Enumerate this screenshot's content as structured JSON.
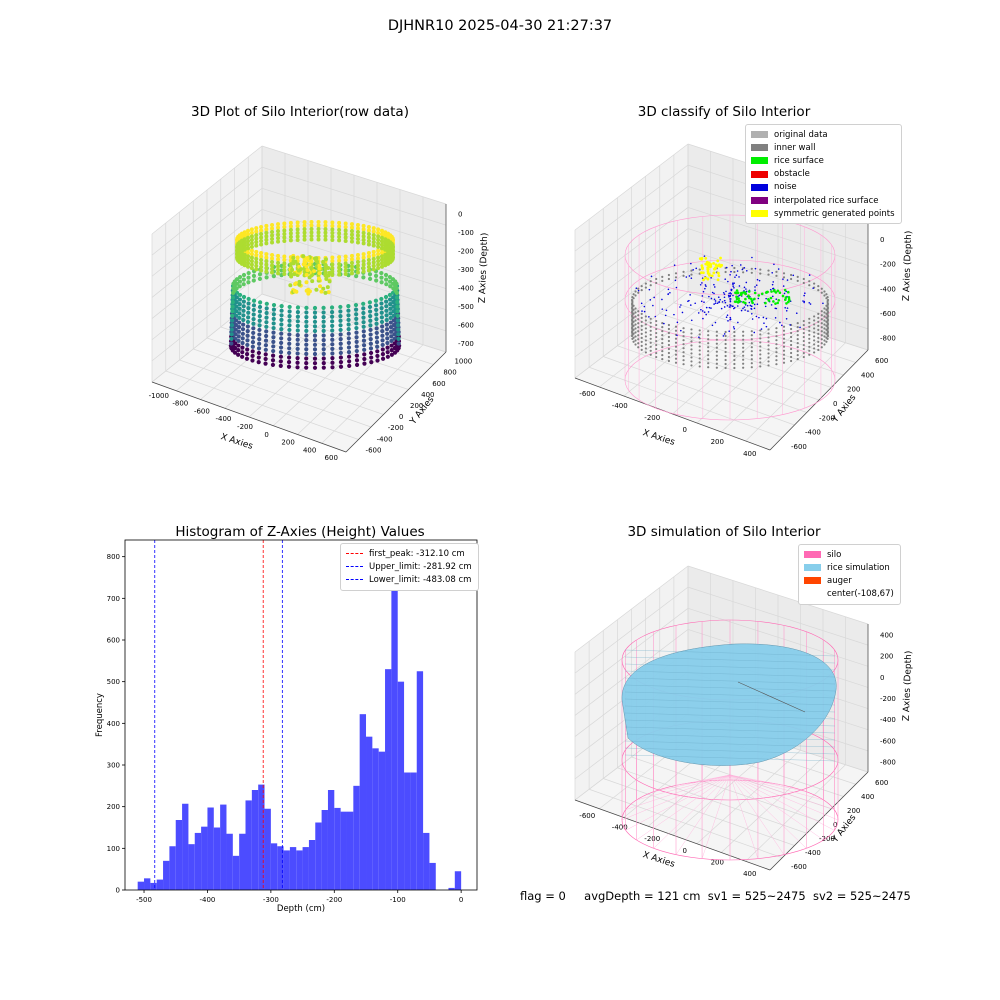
{
  "suptitle": "DJHNR10 2025-04-30 21:27:37",
  "status": {
    "flag": "flag = 0",
    "avg_depth": "avgDepth = 121 cm",
    "sv1": "sv1 = 525~2475",
    "sv2": "sv2 = 525~2475"
  },
  "panels": {
    "raw": {
      "title": "3D Plot of Silo Interior(row data)",
      "xlabel": "X Axies",
      "ylabel": "Y Axies",
      "zlabel": "Z Axies (Depth)",
      "xticks": [
        "-1000",
        "-800",
        "-600",
        "-400",
        "-200",
        "0",
        "200",
        "400",
        "600"
      ],
      "yticks": [
        "-600",
        "-400",
        "-200",
        "0",
        "200",
        "400",
        "600",
        "800",
        "1000"
      ],
      "zticks": [
        "0",
        "-100",
        "-200",
        "-300",
        "-400",
        "-500",
        "-600",
        "-700"
      ]
    },
    "classify": {
      "title": "3D classify of Silo Interior",
      "xlabel": "X Axies",
      "ylabel": "Y Axies",
      "zlabel": "Z Axies (Depth)",
      "xticks": [
        "-600",
        "-400",
        "-200",
        "0",
        "200",
        "400"
      ],
      "yticks": [
        "-600",
        "-400",
        "-200",
        "0",
        "200",
        "400",
        "600"
      ],
      "zticks": [
        "200",
        "0",
        "-200",
        "-400",
        "-600",
        "-800"
      ],
      "legend": [
        {
          "label": "original data",
          "color": "#b0b0b0"
        },
        {
          "label": "inner wall",
          "color": "#808080"
        },
        {
          "label": "rice surface",
          "color": "#00ee00"
        },
        {
          "label": "obstacle",
          "color": "#ee0000"
        },
        {
          "label": "noise",
          "color": "#0000dd"
        },
        {
          "label": "interpolated rice surface",
          "color": "#800080"
        },
        {
          "label": "symmetric generated points",
          "color": "#ffff00"
        }
      ]
    },
    "simulation": {
      "title": "3D simulation of Silo Interior",
      "xlabel": "X Axies",
      "ylabel": "Y Axies",
      "zlabel": "Z Axies (Depth)",
      "xticks": [
        "-600",
        "-400",
        "-200",
        "0",
        "200",
        "400"
      ],
      "yticks": [
        "-600",
        "-400",
        "-200",
        "0",
        "200",
        "400",
        "600"
      ],
      "zticks": [
        "400",
        "200",
        "0",
        "-200",
        "-400",
        "-600",
        "-800"
      ],
      "legend": [
        {
          "label": "silo",
          "color": "#ff69b4"
        },
        {
          "label": "rice simulation",
          "color": "#87ceeb"
        },
        {
          "label": "auger",
          "color": "#ff4500"
        },
        {
          "label": "center(-108,67)",
          "color": ""
        }
      ]
    }
  },
  "chart_data": {
    "type": "bar",
    "title": "Histogram of Z-Axies (Height) Values",
    "xlabel": "Depth (cm)",
    "ylabel": "Frequency",
    "xlim": [
      -530,
      25
    ],
    "ylim": [
      0,
      840
    ],
    "xticks": [
      -500,
      -400,
      -300,
      -200,
      -100,
      0
    ],
    "yticks": [
      0,
      100,
      200,
      300,
      400,
      500,
      600,
      700,
      800
    ],
    "bin_start": -510,
    "bin_width": 10,
    "values": [
      20,
      28,
      17,
      25,
      70,
      105,
      168,
      207,
      110,
      137,
      152,
      198,
      150,
      205,
      135,
      82,
      135,
      215,
      240,
      253,
      195,
      112,
      105,
      95,
      103,
      95,
      103,
      120,
      162,
      192,
      240,
      197,
      188,
      188,
      250,
      422,
      368,
      340,
      332,
      530,
      800,
      500,
      282,
      282,
      525,
      137,
      65,
      0,
      0,
      5,
      45
    ],
    "lines": [
      {
        "label": "first_peak: -312.10 cm",
        "x": -312.1,
        "color": "#ff0000"
      },
      {
        "label": "Upper_limit: -281.92 cm",
        "x": -281.92,
        "color": "#0000ff"
      },
      {
        "label": "Lower_limit: -483.08 cm",
        "x": -483.08,
        "color": "#0000ff"
      }
    ],
    "bar_color": "#4c4cff",
    "legend_position": "upper right"
  }
}
